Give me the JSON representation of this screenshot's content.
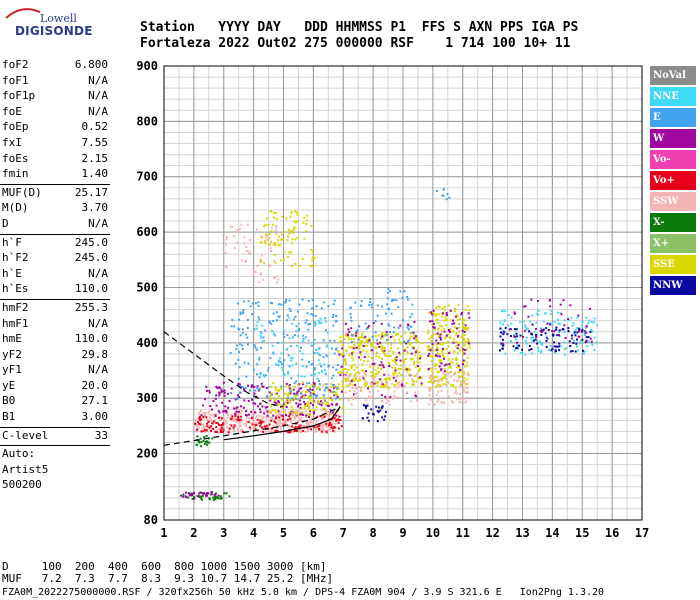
{
  "logo": {
    "line1": "Lowell",
    "line2": "DIGISONDE"
  },
  "header": {
    "line1": "Station   YYYY DAY   DDD HHMMSS P1  FFS S AXN PPS IGA PS",
    "line2": "Fortaleza 2022 Out02 275 000000 RSF    1 714 100 10+ 11"
  },
  "params": {
    "group1": [
      {
        "k": "foF2",
        "v": "6.800"
      },
      {
        "k": "foF1",
        "v": "N/A"
      },
      {
        "k": "foF1p",
        "v": "N/A"
      },
      {
        "k": "foE",
        "v": "N/A"
      },
      {
        "k": "foEp",
        "v": "0.52"
      },
      {
        "k": "fxI",
        "v": "7.55"
      },
      {
        "k": "foEs",
        "v": "2.15"
      },
      {
        "k": "fmin",
        "v": "1.40"
      }
    ],
    "group2": [
      {
        "k": "MUF(D)",
        "v": "25.17"
      },
      {
        "k": "M(D)",
        "v": "3.70"
      },
      {
        "k": "D",
        "v": "N/A"
      }
    ],
    "group3": [
      {
        "k": "h`F",
        "v": "245.0"
      },
      {
        "k": "h`F2",
        "v": "245.0"
      },
      {
        "k": "h`E",
        "v": "N/A"
      },
      {
        "k": "h`Es",
        "v": "110.0"
      }
    ],
    "group4": [
      {
        "k": "hmF2",
        "v": "255.3"
      },
      {
        "k": "hmF1",
        "v": "N/A"
      },
      {
        "k": "hmE",
        "v": "110.0"
      },
      {
        "k": "yF2",
        "v": "29.8"
      },
      {
        "k": "yF1",
        "v": "N/A"
      },
      {
        "k": "yE",
        "v": "20.0"
      },
      {
        "k": "B0",
        "v": "27.1"
      },
      {
        "k": "B1",
        "v": "3.00"
      }
    ],
    "group5": [
      {
        "k": "C-level",
        "v": "33"
      }
    ],
    "auto_lines": [
      "Auto:",
      "Artist5",
      "500200"
    ]
  },
  "footer": {
    "line1": "D     100  200  400  600  800 1000 1500 3000 [km]",
    "line2": "MUF   7.2  7.3  7.7  8.3  9.3 10.7 14.7 25.2 [MHz]",
    "line3": "FZA0M_2022275000000.RSF / 320fx256h 50 kHz 5.0 km / DPS-4 FZA0M 904 / 3.9 S 321.6 E   Ion2Png 1.3.20"
  },
  "legend": [
    {
      "label": "NoVal",
      "color": "#8c8c8c"
    },
    {
      "label": "NNE",
      "color": "#3fd8f5"
    },
    {
      "label": "E",
      "color": "#40a4f0"
    },
    {
      "label": "W",
      "color": "#a0079f"
    },
    {
      "label": "Vo-",
      "color": "#f040b0"
    },
    {
      "label": "Vo+",
      "color": "#e8001a"
    },
    {
      "label": "SSW",
      "color": "#f5b4b4"
    },
    {
      "label": "X-",
      "color": "#0a7a0a"
    },
    {
      "label": "X+",
      "color": "#8cc064"
    },
    {
      "label": "SSE",
      "color": "#d8d800"
    },
    {
      "label": "NNW",
      "color": "#0a0aa0"
    }
  ],
  "chart_data": {
    "type": "scatter",
    "title": "",
    "xlabel": "",
    "ylabel": "",
    "xlim": [
      1,
      17
    ],
    "ylim": [
      80,
      900
    ],
    "x_ticks": [
      "1",
      "2",
      "3",
      "4",
      "5",
      "6",
      "7",
      "8",
      "9",
      "10",
      "11",
      "12",
      "13",
      "14",
      "15",
      "16",
      "17"
    ],
    "y_ticks": [
      "80",
      "200",
      "300",
      "400",
      "500",
      "600",
      "700",
      "800",
      "900"
    ],
    "grid": true,
    "clusters": [
      {
        "color": "#0a7a0a",
        "x": [
          1.5,
          3.2
        ],
        "y": [
          118,
          132
        ],
        "n": 40
      },
      {
        "color": "#a0079f",
        "x": [
          1.6,
          2.8
        ],
        "y": [
          120,
          132
        ],
        "n": 25
      },
      {
        "color": "#0a7a0a",
        "x": [
          2.0,
          2.6
        ],
        "y": [
          215,
          235
        ],
        "n": 20
      },
      {
        "color": "#f5b4b4",
        "x": [
          2.0,
          6.8
        ],
        "y": [
          240,
          280
        ],
        "n": 420
      },
      {
        "color": "#e8001a",
        "x": [
          2.0,
          7.0
        ],
        "y": [
          240,
          270
        ],
        "n": 160
      },
      {
        "color": "#a0079f",
        "x": [
          2.2,
          6.8
        ],
        "y": [
          270,
          330
        ],
        "n": 200
      },
      {
        "color": "#d8d800",
        "x": [
          4.5,
          7.0
        ],
        "y": [
          270,
          330
        ],
        "n": 140
      },
      {
        "color": "#40a4f0",
        "x": [
          3.2,
          6.8
        ],
        "y": [
          300,
          480
        ],
        "n": 220
      },
      {
        "color": "#3fd8f5",
        "x": [
          4.0,
          6.5
        ],
        "y": [
          330,
          450
        ],
        "n": 80
      },
      {
        "color": "#f5b4b4",
        "x": [
          3.0,
          4.8
        ],
        "y": [
          510,
          620
        ],
        "n": 60
      },
      {
        "color": "#d8d800",
        "x": [
          4.2,
          6.0
        ],
        "y": [
          540,
          640
        ],
        "n": 90
      },
      {
        "color": "#d8d800",
        "x": [
          6.8,
          9.6
        ],
        "y": [
          320,
          420
        ],
        "n": 320
      },
      {
        "color": "#a0079f",
        "x": [
          6.8,
          9.6
        ],
        "y": [
          300,
          440
        ],
        "n": 90
      },
      {
        "color": "#f5b4b4",
        "x": [
          7.0,
          9.5
        ],
        "y": [
          290,
          350
        ],
        "n": 80
      },
      {
        "color": "#40a4f0",
        "x": [
          7.2,
          9.3
        ],
        "y": [
          400,
          500
        ],
        "n": 70
      },
      {
        "color": "#0a0aa0",
        "x": [
          7.6,
          8.4
        ],
        "y": [
          260,
          290
        ],
        "n": 25
      },
      {
        "color": "#d8d800",
        "x": [
          9.8,
          11.2
        ],
        "y": [
          320,
          470
        ],
        "n": 240
      },
      {
        "color": "#f5b4b4",
        "x": [
          9.8,
          11.2
        ],
        "y": [
          290,
          350
        ],
        "n": 70
      },
      {
        "color": "#a0079f",
        "x": [
          9.8,
          11.2
        ],
        "y": [
          350,
          460
        ],
        "n": 70
      },
      {
        "color": "#40a4f0",
        "x": [
          10.0,
          10.6
        ],
        "y": [
          660,
          680
        ],
        "n": 8
      },
      {
        "color": "#3fd8f5",
        "x": [
          12.2,
          15.5
        ],
        "y": [
          380,
          460
        ],
        "n": 130
      },
      {
        "color": "#0a0aa0",
        "x": [
          12.2,
          15.3
        ],
        "y": [
          385,
          430
        ],
        "n": 90
      },
      {
        "color": "#a0079f",
        "x": [
          12.2,
          15.3
        ],
        "y": [
          400,
          480
        ],
        "n": 50
      }
    ],
    "trace_lines": [
      {
        "style": "dashed",
        "points": [
          [
            1.0,
            420
          ],
          [
            2.0,
            380
          ],
          [
            3.0,
            340
          ],
          [
            3.8,
            310
          ],
          [
            4.5,
            290
          ],
          [
            5.0,
            285
          ]
        ]
      },
      {
        "style": "dashed",
        "points": [
          [
            1.0,
            215
          ],
          [
            3.0,
            232
          ],
          [
            5.0,
            250
          ],
          [
            6.0,
            262
          ],
          [
            6.8,
            282
          ]
        ]
      },
      {
        "style": "solid",
        "points": [
          [
            3.0,
            225
          ],
          [
            4.0,
            232
          ],
          [
            5.0,
            240
          ],
          [
            6.0,
            250
          ],
          [
            6.6,
            262
          ],
          [
            6.9,
            285
          ]
        ]
      }
    ]
  }
}
